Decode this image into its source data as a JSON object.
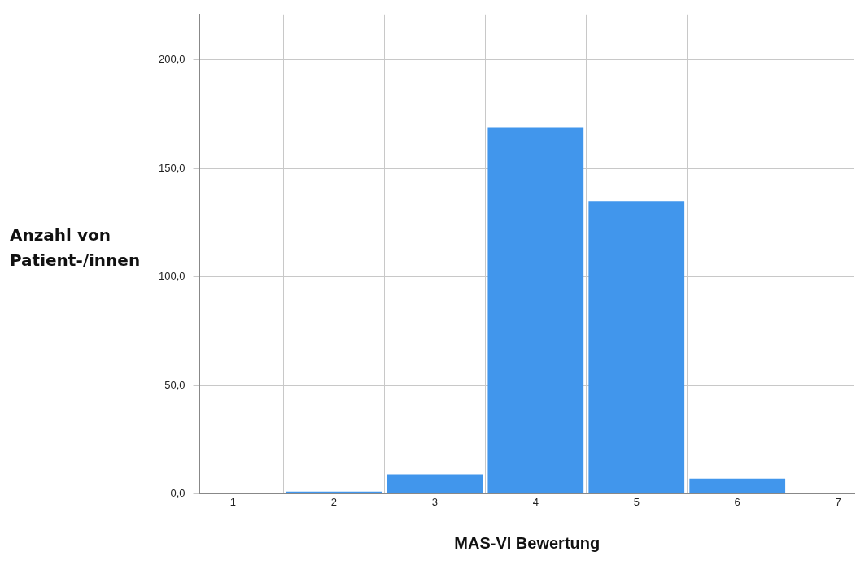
{
  "chart_data": {
    "type": "histogram",
    "xlabel": "MAS-VI Bewertung",
    "ylabel": "Anzahl von Patient-/innen",
    "bins": [
      1.5,
      2.5,
      3.5,
      4.5,
      5.5,
      6.5
    ],
    "values": [
      1,
      9,
      169,
      135,
      7
    ],
    "color": "#4196ec",
    "xlim": [
      0.67,
      7.16
    ],
    "xticks": [
      1,
      2,
      3,
      4,
      5,
      6,
      7
    ],
    "ylim": [
      0,
      221
    ],
    "yticks": [
      {
        "value": 0,
        "label": "0,0"
      },
      {
        "value": 50,
        "label": "50,0"
      },
      {
        "value": 100,
        "label": "100,0"
      },
      {
        "value": 150,
        "label": "150,0"
      },
      {
        "value": 200,
        "label": "200,0"
      }
    ],
    "grid": true,
    "legend": false
  }
}
